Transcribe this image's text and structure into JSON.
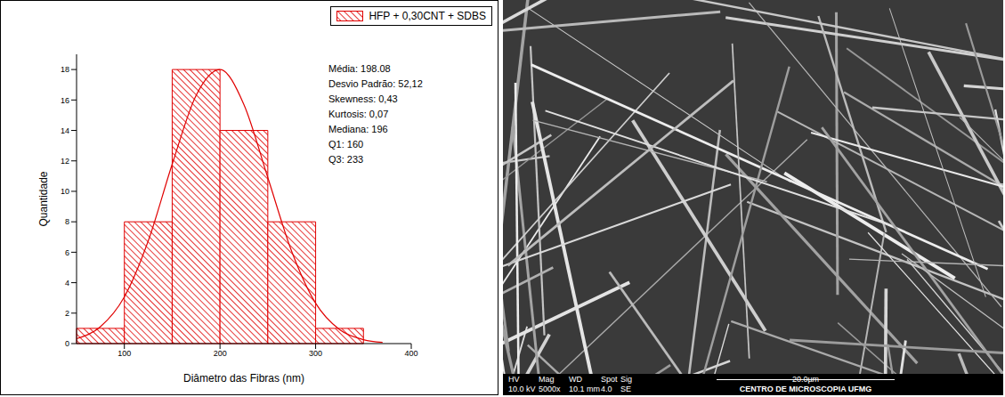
{
  "chart_data": {
    "type": "histogram",
    "series_name": "HFP + 0,30CNT + SDBS",
    "color": "#e00000",
    "bins": [
      50,
      100,
      150,
      200,
      250,
      300,
      350
    ],
    "counts": [
      1,
      8,
      18,
      14,
      8,
      1
    ],
    "curve": {
      "type": "line",
      "x": [
        50,
        75,
        100,
        125,
        150,
        175,
        200,
        225,
        250,
        275,
        300,
        325,
        350,
        370
      ],
      "values": [
        0.32,
        1.11,
        3.07,
        6.75,
        11.78,
        16.3,
        18.0,
        15.7,
        10.9,
        6.05,
        2.65,
        0.92,
        0.26,
        0.08
      ]
    },
    "x_label": "Diâmetro das Fibras (nm)",
    "y_label": "Quantidade",
    "xlim": [
      50,
      400
    ],
    "xticks": [
      100,
      200,
      300,
      400
    ],
    "ylim": [
      0,
      19
    ],
    "yticks": [
      0,
      2,
      4,
      6,
      8,
      10,
      12,
      14,
      16,
      18
    ],
    "legend": "upper right",
    "annotations": [
      "Média: 198.08",
      "Desvio Padrão: 52,12",
      "Skewness: 0,43",
      "Kurtosis: 0,07",
      "Mediana: 196",
      "Q1: 160",
      "Q3: 233"
    ]
  },
  "sem_image": {
    "header": [
      "HV",
      "Mag",
      "WD",
      "Spot",
      "Sig"
    ],
    "values": [
      "10.0 kV",
      "5000x",
      "10.1 mm",
      "4.0",
      "SE"
    ],
    "scale_bar": "20.0µm",
    "caption": "CENTRO DE MICROSCOPIA UFMG"
  }
}
